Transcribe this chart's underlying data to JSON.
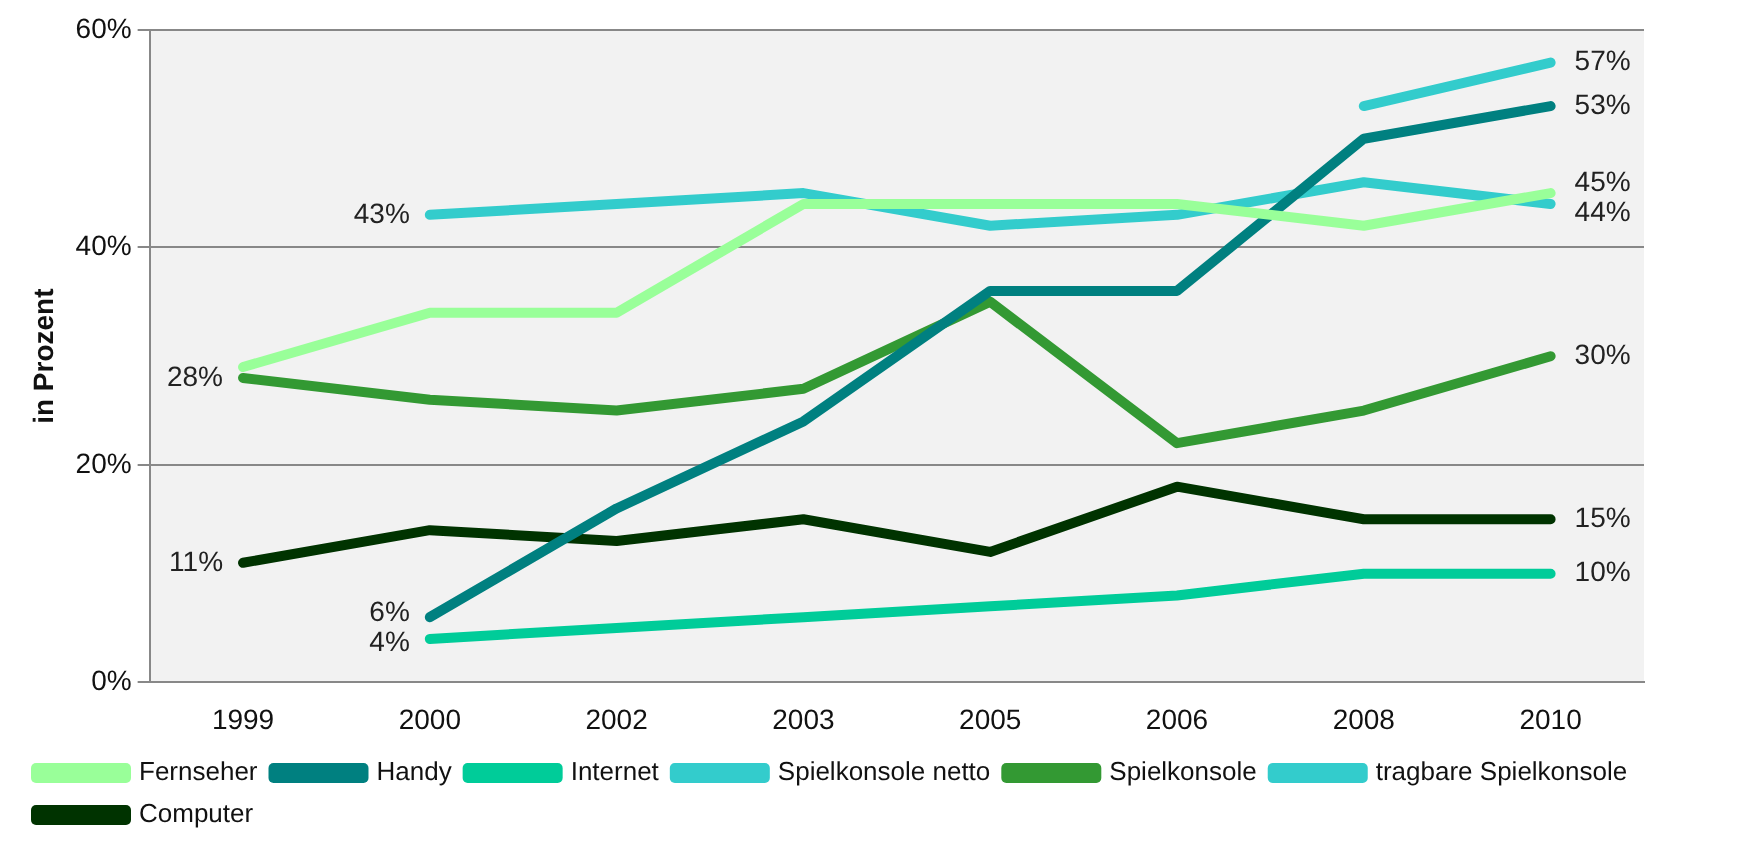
{
  "chart_data": {
    "type": "line",
    "ylabel": "in Prozent",
    "categories": [
      "1999",
      "2000",
      "2002",
      "2003",
      "2005",
      "2006",
      "2008",
      "2010"
    ],
    "ylim": [
      0,
      60
    ],
    "yticks": [
      {
        "value": 0,
        "label": "0%"
      },
      {
        "value": 20,
        "label": "20%"
      },
      {
        "value": 40,
        "label": "40%"
      },
      {
        "value": 60,
        "label": "60%"
      }
    ],
    "grid": "y",
    "legend": "bottom",
    "marker": "none",
    "line_style": "solid",
    "series": [
      {
        "name": "Fernseher",
        "color": "#99ff99",
        "values": [
          29,
          34,
          34,
          44,
          44,
          44,
          42,
          45
        ],
        "value_labels": [
          null,
          null,
          null,
          null,
          null,
          null,
          null,
          "45%"
        ]
      },
      {
        "name": "Handy",
        "color": "#008080",
        "values": [
          null,
          6,
          16,
          24,
          36,
          36,
          50,
          53
        ],
        "value_labels": [
          null,
          "6%",
          null,
          null,
          null,
          null,
          null,
          "53%"
        ]
      },
      {
        "name": "Internet",
        "color": "#00cc99",
        "values": [
          null,
          4,
          5,
          6,
          7,
          8,
          10,
          10
        ],
        "value_labels": [
          null,
          "4%",
          null,
          null,
          null,
          null,
          null,
          "10%"
        ]
      },
      {
        "name": "Spielkonsole netto",
        "color": "#33cccc",
        "values": [
          null,
          43,
          44,
          45,
          42,
          43,
          46,
          44
        ],
        "value_labels": [
          null,
          "43%",
          null,
          null,
          null,
          null,
          null,
          "44%"
        ]
      },
      {
        "name": "Spielkonsole",
        "color": "#339933",
        "values": [
          28,
          26,
          25,
          27,
          35,
          22,
          25,
          30
        ],
        "value_labels": [
          "28%",
          null,
          null,
          null,
          null,
          null,
          null,
          "30%"
        ]
      },
      {
        "name": "tragbare Spielkonsole",
        "color": "#33cccc",
        "values": [
          null,
          null,
          null,
          null,
          null,
          null,
          53,
          57
        ],
        "value_labels": [
          null,
          null,
          null,
          null,
          null,
          null,
          null,
          "57%"
        ]
      },
      {
        "name": "Computer",
        "color": "#003300",
        "values": [
          11,
          14,
          13,
          15,
          12,
          18,
          15,
          15
        ],
        "value_labels": [
          "11%",
          null,
          null,
          null,
          null,
          null,
          null,
          "15%"
        ]
      }
    ]
  }
}
